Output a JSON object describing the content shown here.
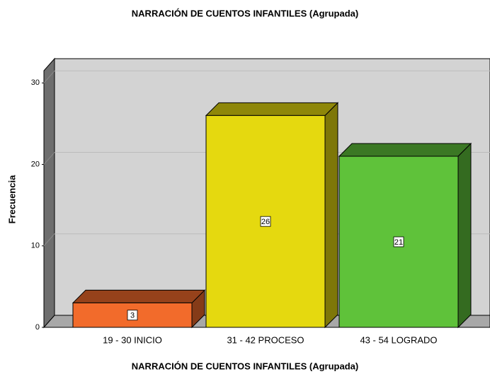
{
  "chart_data": {
    "type": "bar3d",
    "title": "NARRACIÓN DE CUENTOS INFANTILES (Agrupada)",
    "x_label": "NARRACIÓN DE CUENTOS INFANTILES (Agrupada)",
    "y_label": "Frecuencia",
    "categories": [
      "19 - 30 INICIO",
      "31 - 42 PROCESO",
      "43 - 54 LOGRADO"
    ],
    "values": [
      3,
      26,
      21
    ],
    "colors": [
      "#f26b2b",
      "#e5d90f",
      "#5fc23a"
    ],
    "ylim": [
      0,
      31.5
    ],
    "yticks": [
      0,
      10,
      20,
      30
    ],
    "grid": true
  }
}
